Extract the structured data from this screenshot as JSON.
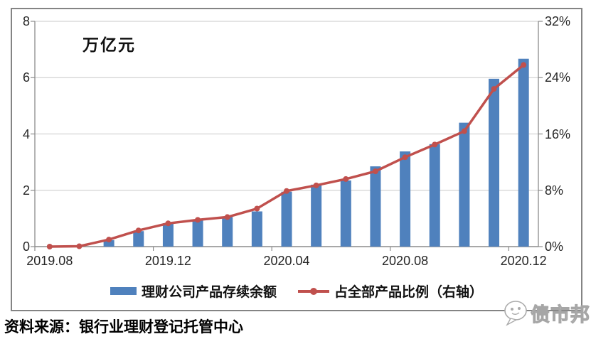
{
  "figure": {
    "unit_label": "万亿元",
    "source": "资料来源：银行业理财登记托管中心",
    "watermark": "债市邦"
  },
  "legend": {
    "bar_series_label": "理财公司产品存续余额",
    "line_series_label": "占全部产品比例（右轴）"
  },
  "colors": {
    "bar": "#4F81BD",
    "line": "#C0504D",
    "grid": "#C8C8C8",
    "axis": "#8C8C8C",
    "frame_border": "#848484"
  },
  "chart_data": {
    "type": "bar",
    "subtype": "bar-plus-line-dual-axis",
    "title": "",
    "categories": [
      "2019.08",
      "2019.09",
      "2019.10",
      "2019.11",
      "2019.12",
      "2020.01",
      "2020.02",
      "2020.03",
      "2020.04",
      "2020.05",
      "2020.06",
      "2020.07",
      "2020.08",
      "2020.09",
      "2020.10",
      "2020.11",
      "2020.12"
    ],
    "series": [
      {
        "name": "理财公司产品存续余额",
        "type": "bar",
        "axis": "left",
        "values": [
          0,
          0,
          0.23,
          0.55,
          0.83,
          0.95,
          1.05,
          1.25,
          1.95,
          2.2,
          2.35,
          2.85,
          3.38,
          3.64,
          4.4,
          5.96,
          6.67
        ]
      },
      {
        "name": "占全部产品比例（右轴）",
        "type": "line",
        "axis": "right",
        "values": [
          0,
          0.05,
          1.0,
          2.3,
          3.3,
          3.8,
          4.2,
          5.4,
          7.9,
          8.7,
          9.6,
          10.7,
          12.7,
          14.5,
          16.4,
          22.4,
          25.8
        ]
      }
    ],
    "y_left_axis": {
      "label": "万亿元",
      "tick_values": [
        0,
        2,
        4,
        6,
        8
      ],
      "tick_labels": [
        "0",
        "2",
        "4",
        "6",
        "8"
      ],
      "range": [
        0,
        8
      ]
    },
    "y_right_axis": {
      "tick_values": [
        0,
        8,
        16,
        24,
        32
      ],
      "tick_labels": [
        "0%",
        "8%",
        "16%",
        "24%",
        "32%"
      ],
      "range": [
        0,
        32
      ]
    },
    "x_axis": {
      "shown_tick_labels": [
        "2019.08",
        "2019.12",
        "2020.04",
        "2020.08",
        "2020.12"
      ],
      "label_interval": 4
    },
    "grid": true,
    "legend_position": "bottom"
  }
}
